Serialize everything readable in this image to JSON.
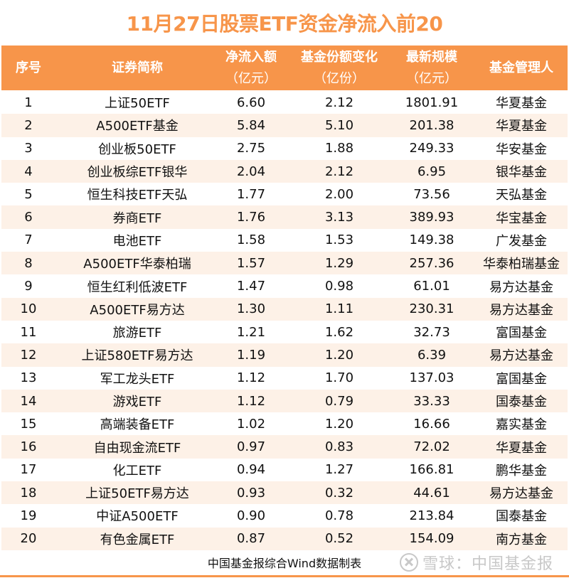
{
  "title": "11月27日股票ETF资金净流入前20",
  "colors": {
    "accent": "#F7954A",
    "row_alt": "#FDF1E7",
    "text": "#111111"
  },
  "columns": [
    {
      "line1": "序号",
      "line2": ""
    },
    {
      "line1": "证券简称",
      "line2": ""
    },
    {
      "line1": "净流入额",
      "line2": "（亿元）"
    },
    {
      "line1": "基金份额变化",
      "line2": "（亿份）"
    },
    {
      "line1": "最新规模",
      "line2": "（亿元）"
    },
    {
      "line1": "基金管理人",
      "line2": ""
    }
  ],
  "rows": [
    [
      "1",
      "上证50ETF",
      "6.60",
      "2.12",
      "1801.91",
      "华夏基金"
    ],
    [
      "2",
      "A500ETF基金",
      "5.84",
      "5.10",
      "201.38",
      "华夏基金"
    ],
    [
      "3",
      "创业板50ETF",
      "2.75",
      "1.88",
      "249.33",
      "华安基金"
    ],
    [
      "4",
      "创业板综ETF银华",
      "2.04",
      "2.12",
      "6.95",
      "银华基金"
    ],
    [
      "5",
      "恒生科技ETF天弘",
      "1.77",
      "2.00",
      "73.56",
      "天弘基金"
    ],
    [
      "6",
      "券商ETF",
      "1.76",
      "3.13",
      "389.93",
      "华宝基金"
    ],
    [
      "7",
      "电池ETF",
      "1.58",
      "1.53",
      "149.38",
      "广发基金"
    ],
    [
      "8",
      "A500ETF华泰柏瑞",
      "1.57",
      "1.29",
      "257.36",
      "华泰柏瑞基金"
    ],
    [
      "9",
      "恒生红利低波ETF",
      "1.47",
      "0.98",
      "61.01",
      "易方达基金"
    ],
    [
      "10",
      "A500ETF易方达",
      "1.30",
      "1.11",
      "230.31",
      "易方达基金"
    ],
    [
      "11",
      "旅游ETF",
      "1.21",
      "1.62",
      "32.73",
      "富国基金"
    ],
    [
      "12",
      "上证580ETF易方达",
      "1.19",
      "1.20",
      "6.39",
      "易方达基金"
    ],
    [
      "13",
      "军工龙头ETF",
      "1.12",
      "1.70",
      "137.03",
      "富国基金"
    ],
    [
      "14",
      "游戏ETF",
      "1.12",
      "0.79",
      "33.33",
      "国泰基金"
    ],
    [
      "15",
      "高端装备ETF",
      "1.02",
      "1.20",
      "16.66",
      "嘉实基金"
    ],
    [
      "16",
      "自由现金流ETF",
      "0.97",
      "0.83",
      "72.02",
      "华夏基金"
    ],
    [
      "17",
      "化工ETF",
      "0.94",
      "1.27",
      "166.81",
      "鹏华基金"
    ],
    [
      "18",
      "上证50ETF易方达",
      "0.93",
      "0.32",
      "44.61",
      "易方达基金"
    ],
    [
      "19",
      "中证A500ETF",
      "0.90",
      "0.78",
      "213.84",
      "国泰基金"
    ],
    [
      "20",
      "有色金属ETF",
      "0.87",
      "0.52",
      "154.09",
      "南方基金"
    ]
  ],
  "footer": {
    "source": "中国基金报综合Wind数据制表",
    "watermark": "雪球：中国基金报",
    "watermark_icon": "snowball-logo-icon"
  }
}
